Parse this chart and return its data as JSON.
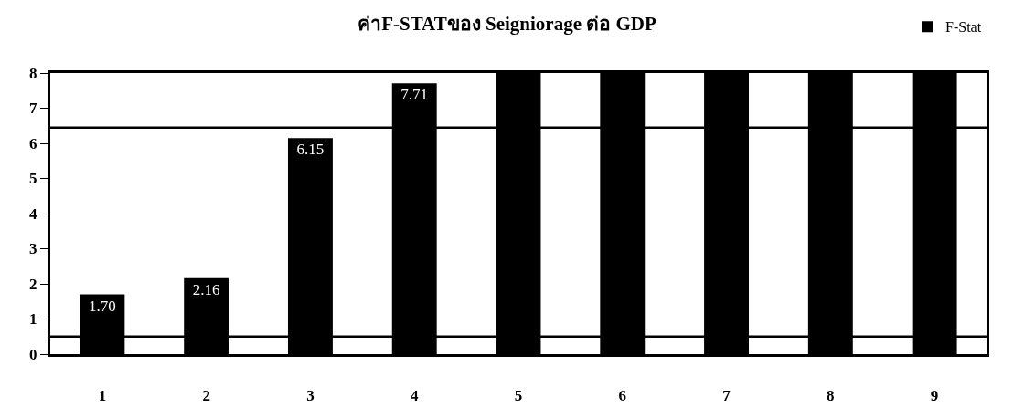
{
  "chart_data": {
    "type": "bar",
    "title": "ค่าF-STATของ Seigniorage ต่อ GDP",
    "categories": [
      "1",
      "2",
      "3",
      "4",
      "5",
      "6",
      "7",
      "8",
      "9"
    ],
    "series": [
      {
        "name": "F-Stat",
        "color": "#000000",
        "values": [
          1.7,
          2.16,
          6.15,
          7.71,
          8,
          8,
          8,
          8,
          8
        ],
        "value_labels": [
          "1.70",
          "2.16",
          "6.15",
          "7.71",
          null,
          null,
          null,
          null,
          null
        ]
      }
    ],
    "ylim": [
      0,
      8
    ],
    "yticks": [
      0,
      1,
      2,
      3,
      4,
      5,
      6,
      7,
      8
    ],
    "ref_lines": [
      {
        "axis": "y",
        "value": 6.45,
        "color": "#000000"
      },
      {
        "axis": "y",
        "value": 0.5,
        "color": "#000000"
      }
    ],
    "grid": false,
    "legend": "top right"
  }
}
